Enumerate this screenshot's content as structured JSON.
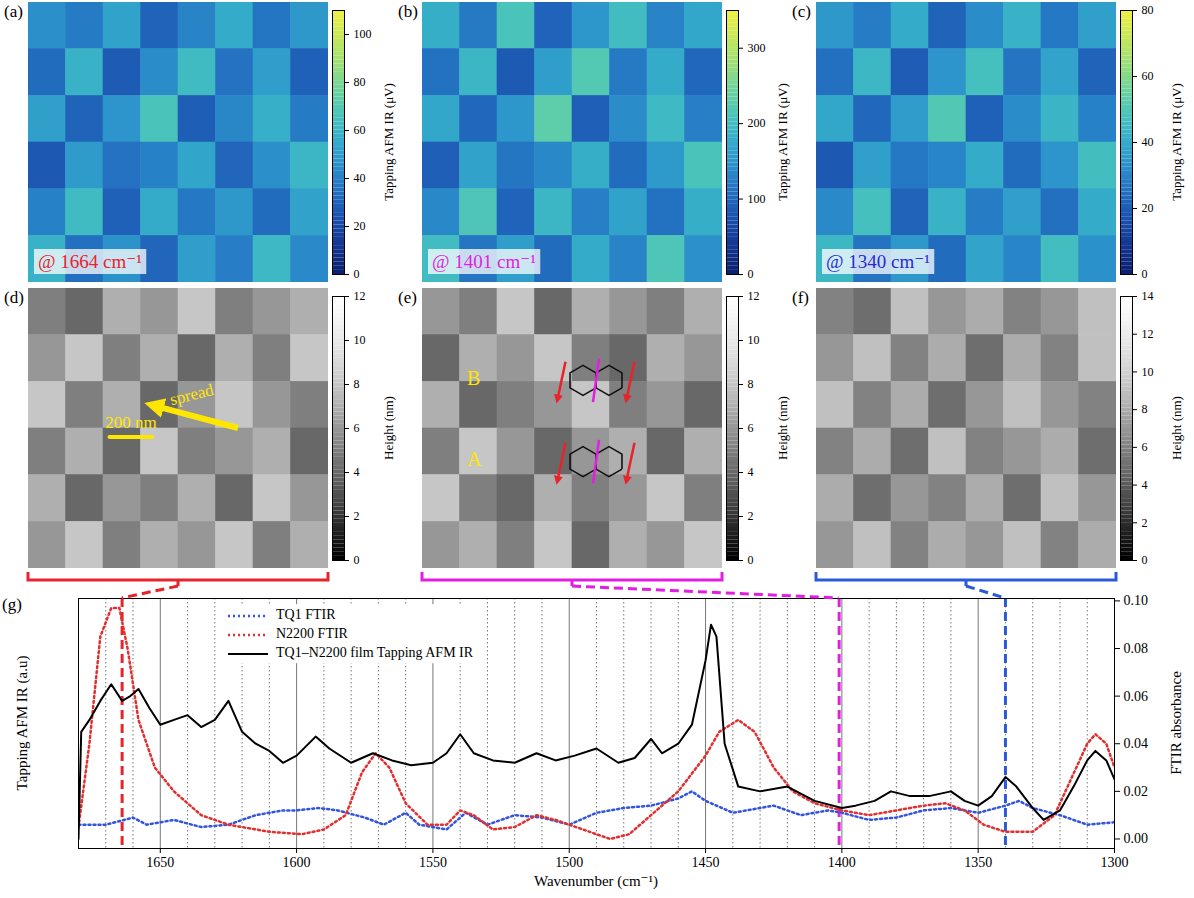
{
  "chart_data": [
    {
      "type": "heatmap",
      "title": "(a)",
      "color": "parula",
      "tick_labels": false,
      "cells": [
        [
          45,
          38,
          52,
          30,
          41,
          55,
          36,
          48
        ],
        [
          33,
          58,
          27,
          44,
          62,
          35,
          50,
          29
        ],
        [
          51,
          30,
          47,
          66,
          28,
          42,
          57,
          38
        ],
        [
          26,
          49,
          35,
          40,
          53,
          31,
          45,
          60
        ],
        [
          40,
          62,
          29,
          55,
          37,
          48,
          33,
          52
        ],
        [
          58,
          34,
          46,
          31,
          50,
          39,
          61,
          43
        ]
      ],
      "colorbar": {
        "label": "Tapping AFM IR (μV)",
        "range": [
          0,
          110
        ],
        "ticks": [
          0,
          20,
          40,
          60,
          80,
          100
        ]
      },
      "annotations": [
        {
          "text": "@ 1664 cm⁻¹",
          "color": "#e8232a"
        }
      ]
    },
    {
      "type": "heatmap",
      "title": "(b)",
      "color": "parula",
      "tick_labels": false,
      "cells": [
        [
          180,
          120,
          210,
          95,
          150,
          200,
          130,
          170
        ],
        [
          110,
          190,
          85,
          160,
          220,
          120,
          175,
          100
        ],
        [
          170,
          100,
          150,
          230,
          90,
          140,
          195,
          125
        ],
        [
          90,
          165,
          115,
          135,
          180,
          105,
          155,
          210
        ],
        [
          135,
          215,
          95,
          190,
          125,
          165,
          110,
          180
        ],
        [
          200,
          115,
          160,
          105,
          175,
          130,
          215,
          145
        ]
      ],
      "colorbar": {
        "label": "Tapping AFM IR (μV)",
        "range": [
          0,
          350
        ],
        "ticks": [
          0,
          100,
          200,
          300
        ]
      },
      "annotations": [
        {
          "text": "@ 1401 cm⁻¹",
          "color": "#e21ee2"
        }
      ]
    },
    {
      "type": "heatmap",
      "title": "(c)",
      "color": "parula",
      "tick_labels": false,
      "cells": [
        [
          35,
          28,
          40,
          22,
          32,
          42,
          27,
          37
        ],
        [
          25,
          44,
          20,
          34,
          47,
          26,
          38,
          22
        ],
        [
          39,
          23,
          36,
          50,
          21,
          32,
          43,
          29
        ],
        [
          19,
          37,
          27,
          30,
          40,
          24,
          34,
          46
        ],
        [
          31,
          47,
          22,
          42,
          28,
          37,
          25,
          40
        ],
        [
          44,
          26,
          35,
          24,
          38,
          30,
          46,
          33
        ]
      ],
      "colorbar": {
        "label": "Tapping AFM IR (μV)",
        "range": [
          0,
          80
        ],
        "ticks": [
          0,
          20,
          40,
          60,
          80
        ]
      },
      "annotations": [
        {
          "text": "@ 1340 cm⁻¹",
          "color": "#2a2ad0"
        }
      ]
    },
    {
      "type": "heatmap",
      "title": "(d)",
      "color": "gray",
      "tick_labels": false,
      "xlim": [
        0,
        1400
      ],
      "ylim": [
        0,
        1300
      ],
      "cells": [
        [
          5,
          4,
          7,
          6,
          8,
          5,
          6,
          7
        ],
        [
          6,
          8,
          5,
          7,
          4,
          7,
          5,
          8
        ],
        [
          8,
          5,
          7,
          4,
          6,
          8,
          6,
          5
        ],
        [
          5,
          7,
          4,
          8,
          5,
          6,
          7,
          4
        ],
        [
          7,
          4,
          6,
          5,
          7,
          4,
          8,
          6
        ],
        [
          6,
          8,
          5,
          7,
          6,
          8,
          5,
          7
        ]
      ],
      "colorbar": {
        "label": "Height (nm)",
        "range": [
          0,
          12
        ],
        "ticks": [
          0,
          2,
          4,
          6,
          8,
          10,
          12
        ]
      },
      "scale_bar": {
        "value": 200,
        "label": "200 nm",
        "color": "#ffe600"
      },
      "annotations": [
        {
          "text": "spread",
          "color": "#ffe600",
          "marker": "arrow"
        }
      ]
    },
    {
      "type": "heatmap",
      "title": "(e)",
      "color": "gray",
      "tick_labels": false,
      "cells": [
        [
          6,
          5,
          8,
          4,
          7,
          6,
          5,
          7
        ],
        [
          4,
          7,
          6,
          8,
          5,
          4,
          7,
          6
        ],
        [
          7,
          4,
          5,
          6,
          8,
          5,
          6,
          4
        ],
        [
          5,
          8,
          6,
          4,
          6,
          7,
          4,
          7
        ],
        [
          8,
          5,
          4,
          7,
          5,
          6,
          8,
          5
        ],
        [
          6,
          7,
          5,
          8,
          4,
          7,
          6,
          8
        ]
      ],
      "colorbar": {
        "label": "Height (nm)",
        "range": [
          0,
          12
        ],
        "ticks": [
          0,
          2,
          4,
          6,
          8,
          10,
          12
        ]
      },
      "annotations": [
        {
          "text": "B",
          "color": "#ffe600",
          "marker": "molecule"
        },
        {
          "text": "A",
          "color": "#ffe600",
          "marker": "molecule"
        }
      ]
    },
    {
      "type": "heatmap",
      "title": "(f)",
      "color": "gray",
      "tick_labels": false,
      "cells": [
        [
          6,
          5,
          9,
          7,
          8,
          6,
          7,
          9
        ],
        [
          7,
          9,
          6,
          8,
          5,
          8,
          6,
          9
        ],
        [
          9,
          6,
          8,
          5,
          7,
          9,
          7,
          6
        ],
        [
          6,
          8,
          5,
          9,
          6,
          7,
          8,
          5
        ],
        [
          8,
          5,
          7,
          6,
          8,
          5,
          9,
          7
        ],
        [
          7,
          9,
          6,
          8,
          7,
          9,
          6,
          8
        ]
      ],
      "colorbar": {
        "label": "Height (nm)",
        "range": [
          0,
          14
        ],
        "ticks": [
          0,
          2,
          4,
          6,
          8,
          10,
          12,
          14
        ]
      }
    },
    {
      "type": "line",
      "title": "(g)",
      "x_label": "Wavenumber (cm⁻¹)",
      "y_label": "Tapping AFM IR (a.u)",
      "y2_label": "FTIR absorbance",
      "xlim": [
        1680,
        1300
      ],
      "xticks": [
        1650,
        1600,
        1550,
        1500,
        1450,
        1400,
        1350,
        1300
      ],
      "xminor": [
        1670,
        1660,
        1640,
        1630,
        1620,
        1610,
        1590,
        1580,
        1570,
        1560,
        1540,
        1530,
        1520,
        1510,
        1490,
        1480,
        1470,
        1460,
        1440,
        1430,
        1420,
        1410,
        1390,
        1380,
        1370,
        1360,
        1340,
        1330,
        1320,
        1310
      ],
      "ylim": [
        -0.004,
        0.101
      ],
      "yticks": [],
      "y2lim": [
        -0.004,
        0.101
      ],
      "y2ticks": [
        {
          "value": 0,
          "label": "0.00"
        },
        {
          "value": 0.02,
          "label": "0.02"
        },
        {
          "value": 0.04,
          "label": "0.04"
        },
        {
          "value": 0.06,
          "label": "0.06"
        },
        {
          "value": 0.08,
          "label": "0.08"
        },
        {
          "value": 0.1,
          "label": "0.10"
        }
      ],
      "grid": true,
      "legend": "top-left",
      "series": [
        {
          "name": "TQ1 FTIR",
          "color": "#3355dd",
          "line_style": "dotted",
          "axis": "y2",
          "x": [
            1680,
            1670,
            1660,
            1655,
            1645,
            1635,
            1625,
            1615,
            1605,
            1600,
            1592,
            1585,
            1575,
            1568,
            1560,
            1555,
            1545,
            1538,
            1530,
            1520,
            1510,
            1500,
            1490,
            1480,
            1470,
            1460,
            1455,
            1450,
            1440,
            1430,
            1425,
            1415,
            1405,
            1400,
            1390,
            1380,
            1370,
            1360,
            1350,
            1340,
            1335,
            1330,
            1320,
            1310,
            1300
          ],
          "values": [
            0.006,
            0.006,
            0.009,
            0.006,
            0.008,
            0.005,
            0.006,
            0.01,
            0.012,
            0.012,
            0.013,
            0.012,
            0.009,
            0.006,
            0.011,
            0.006,
            0.004,
            0.011,
            0.006,
            0.01,
            0.009,
            0.006,
            0.011,
            0.013,
            0.014,
            0.017,
            0.02,
            0.016,
            0.011,
            0.013,
            0.014,
            0.01,
            0.012,
            0.011,
            0.008,
            0.009,
            0.012,
            0.013,
            0.011,
            0.014,
            0.016,
            0.013,
            0.01,
            0.006,
            0.007
          ]
        },
        {
          "name": "N2200 FTIR",
          "color": "#e03030",
          "line_style": "dotted",
          "axis": "y2",
          "x": [
            1680,
            1676,
            1672,
            1668,
            1665,
            1662,
            1658,
            1652,
            1645,
            1635,
            1625,
            1610,
            1598,
            1590,
            1582,
            1576,
            1571,
            1566,
            1560,
            1552,
            1545,
            1540,
            1535,
            1528,
            1520,
            1512,
            1505,
            1495,
            1485,
            1478,
            1470,
            1460,
            1450,
            1445,
            1438,
            1432,
            1425,
            1418,
            1410,
            1400,
            1390,
            1380,
            1370,
            1362,
            1355,
            1348,
            1340,
            1330,
            1322,
            1316,
            1310,
            1307,
            1303,
            1300
          ],
          "values": [
            0.005,
            0.04,
            0.085,
            0.097,
            0.097,
            0.08,
            0.05,
            0.03,
            0.02,
            0.01,
            0.006,
            0.003,
            0.002,
            0.004,
            0.01,
            0.028,
            0.036,
            0.03,
            0.015,
            0.006,
            0.006,
            0.012,
            0.01,
            0.004,
            0.005,
            0.01,
            0.008,
            0.004,
            0.0,
            0.002,
            0.01,
            0.02,
            0.035,
            0.045,
            0.05,
            0.045,
            0.03,
            0.02,
            0.015,
            0.012,
            0.01,
            0.012,
            0.014,
            0.015,
            0.012,
            0.006,
            0.003,
            0.003,
            0.01,
            0.025,
            0.04,
            0.044,
            0.04,
            0.03
          ]
        },
        {
          "name": "TQ1–N2200 film Tapping AFM IR",
          "color": "#000000",
          "line_style": "solid",
          "axis": "y",
          "x": [
            1680,
            1679,
            1676,
            1672,
            1668,
            1664,
            1661,
            1658,
            1654,
            1650,
            1645,
            1640,
            1635,
            1630,
            1625,
            1620,
            1615,
            1610,
            1605,
            1600,
            1593,
            1588,
            1580,
            1572,
            1565,
            1558,
            1550,
            1545,
            1540,
            1535,
            1528,
            1520,
            1512,
            1505,
            1498,
            1490,
            1482,
            1476,
            1470,
            1466,
            1460,
            1455,
            1450,
            1448,
            1446,
            1443,
            1438,
            1430,
            1420,
            1410,
            1400,
            1395,
            1388,
            1382,
            1375,
            1368,
            1360,
            1355,
            1350,
            1345,
            1340,
            1336,
            1330,
            1326,
            1320,
            1315,
            1310,
            1307,
            1303,
            1300
          ],
          "values": [
            0.0,
            0.045,
            0.05,
            0.058,
            0.065,
            0.058,
            0.06,
            0.063,
            0.055,
            0.048,
            0.05,
            0.052,
            0.047,
            0.05,
            0.058,
            0.045,
            0.04,
            0.037,
            0.032,
            0.035,
            0.043,
            0.038,
            0.032,
            0.036,
            0.033,
            0.031,
            0.032,
            0.036,
            0.044,
            0.036,
            0.033,
            0.032,
            0.036,
            0.033,
            0.035,
            0.038,
            0.032,
            0.034,
            0.042,
            0.036,
            0.04,
            0.048,
            0.075,
            0.09,
            0.085,
            0.04,
            0.022,
            0.02,
            0.022,
            0.016,
            0.013,
            0.014,
            0.016,
            0.02,
            0.018,
            0.018,
            0.02,
            0.016,
            0.014,
            0.018,
            0.026,
            0.022,
            0.013,
            0.008,
            0.012,
            0.022,
            0.033,
            0.037,
            0.033,
            0.025
          ]
        }
      ],
      "vlines": [
        {
          "x": 1664,
          "color": "#e8232a"
        },
        {
          "x": 1401,
          "color": "#e21ee2"
        },
        {
          "x": 1340,
          "color": "#2a5ad8"
        }
      ]
    }
  ]
}
